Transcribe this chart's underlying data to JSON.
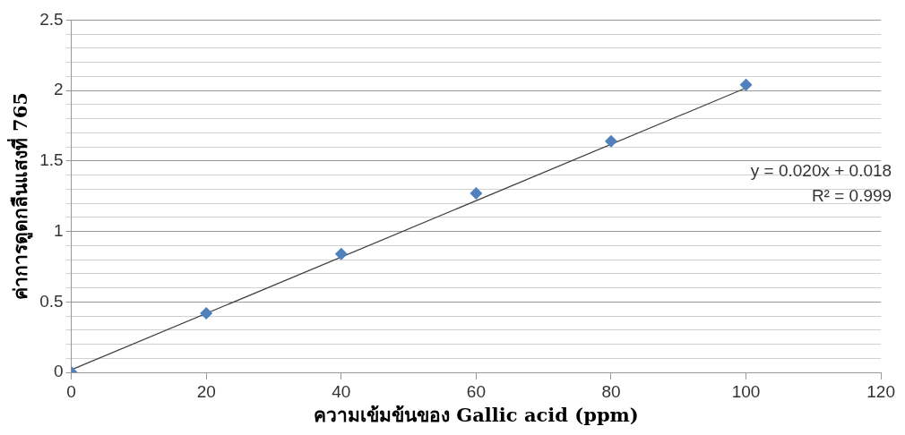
{
  "chart_data": {
    "type": "scatter",
    "xlabel": "ความเข้มข้นของ Gallic acid (ppm)",
    "ylabel": "ค่าการดูดกลืนแสงที่ 765",
    "x": [
      0,
      20,
      40,
      60,
      80,
      100
    ],
    "series": [
      {
        "color": "#4f81bd",
        "values": [
          0,
          0.42,
          0.84,
          1.27,
          1.64,
          2.04
        ],
        "marker": "diamond"
      },
      {
        "type": "line",
        "color": "#404040",
        "x": [
          0,
          100
        ],
        "values": [
          0.018,
          2.018
        ],
        "marker": "none",
        "line_style": "solid"
      }
    ],
    "xlim": [
      0,
      120
    ],
    "xticks": [
      0,
      20,
      40,
      60,
      80,
      100,
      120
    ],
    "ylim": [
      0,
      2.5
    ],
    "yticks": [
      0,
      {
        "value": 0.1,
        "label": null
      },
      {
        "value": 0.2,
        "label": null
      },
      {
        "value": 0.3,
        "label": null
      },
      {
        "value": 0.4,
        "label": null
      },
      0.5,
      {
        "value": 0.6,
        "label": null
      },
      {
        "value": 0.7,
        "label": null
      },
      {
        "value": 0.8,
        "label": null
      },
      {
        "value": 0.9,
        "label": null
      },
      1,
      {
        "value": 1.1,
        "label": null
      },
      {
        "value": 1.2,
        "label": null
      },
      {
        "value": 1.3,
        "label": null
      },
      {
        "value": 1.4,
        "label": null
      },
      1.5,
      {
        "value": 1.6,
        "label": null
      },
      {
        "value": 1.7,
        "label": null
      },
      {
        "value": 1.8,
        "label": null
      },
      {
        "value": 1.9,
        "label": null
      },
      2,
      {
        "value": 2.1,
        "label": null
      },
      {
        "value": 2.2,
        "label": null
      },
      {
        "value": 2.3,
        "label": null
      },
      {
        "value": 2.4,
        "label": null
      },
      2.5
    ],
    "grid": "y",
    "legend": false,
    "annotations": [
      "y = 0.020x + 0.018",
      "R² = 0.999"
    ]
  }
}
